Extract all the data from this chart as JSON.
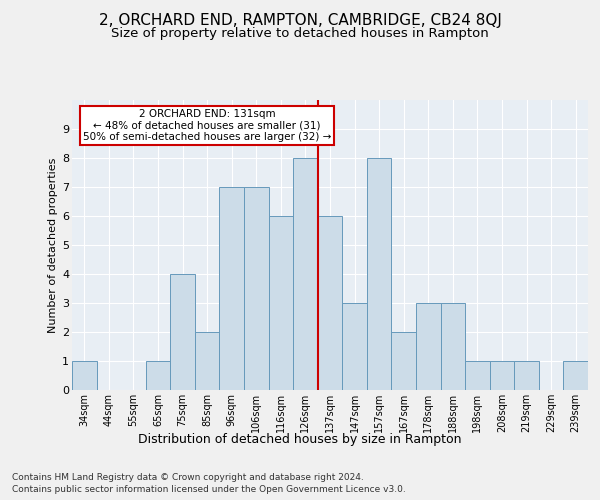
{
  "title": "2, ORCHARD END, RAMPTON, CAMBRIDGE, CB24 8QJ",
  "subtitle": "Size of property relative to detached houses in Rampton",
  "xlabel": "Distribution of detached houses by size in Rampton",
  "ylabel": "Number of detached properties",
  "footer1": "Contains HM Land Registry data © Crown copyright and database right 2024.",
  "footer2": "Contains public sector information licensed under the Open Government Licence v3.0.",
  "bar_labels": [
    "34sqm",
    "44sqm",
    "55sqm",
    "65sqm",
    "75sqm",
    "85sqm",
    "96sqm",
    "106sqm",
    "116sqm",
    "126sqm",
    "137sqm",
    "147sqm",
    "157sqm",
    "167sqm",
    "178sqm",
    "188sqm",
    "198sqm",
    "208sqm",
    "219sqm",
    "229sqm",
    "239sqm"
  ],
  "bar_values": [
    1,
    0,
    0,
    1,
    4,
    2,
    7,
    7,
    6,
    8,
    6,
    3,
    8,
    2,
    3,
    3,
    1,
    1,
    1,
    0,
    1
  ],
  "bar_color": "#ccdce8",
  "bar_edge_color": "#6699bb",
  "highlight_line_index": 9.5,
  "highlight_label": "2 ORCHARD END: 131sqm",
  "annotation_line1": "← 48% of detached houses are smaller (31)",
  "annotation_line2": "50% of semi-detached houses are larger (32) →",
  "ylim": [
    0,
    10
  ],
  "yticks": [
    0,
    1,
    2,
    3,
    4,
    5,
    6,
    7,
    8,
    9,
    10
  ],
  "bg_color": "#e8eef4",
  "grid_color": "#ffffff",
  "annotation_box_color": "#ffffff",
  "annotation_box_edge": "#cc0000",
  "vline_color": "#cc0000",
  "title_fontsize": 11,
  "subtitle_fontsize": 9.5,
  "ylabel_fontsize": 8,
  "xlabel_fontsize": 9,
  "tick_fontsize": 7,
  "annotation_fontsize": 7.5,
  "footer_fontsize": 6.5
}
